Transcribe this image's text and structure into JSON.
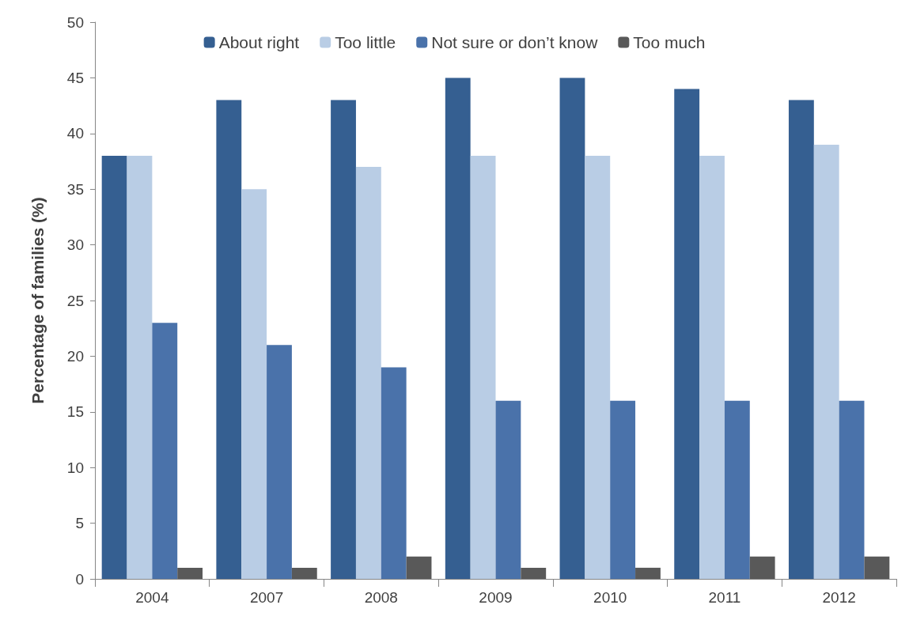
{
  "chart_data": {
    "type": "bar",
    "ylabel": "Percentage of families (%)",
    "categories": [
      "2004",
      "2007",
      "2008",
      "2009",
      "2010",
      "2011",
      "2012"
    ],
    "series": [
      {
        "name": "About right",
        "color": "#355f91",
        "values": [
          38,
          43,
          43,
          45,
          45,
          44,
          43
        ]
      },
      {
        "name": "Too little",
        "color": "#b9cde5",
        "values": [
          38,
          35,
          37,
          38,
          38,
          38,
          39
        ]
      },
      {
        "name": "Not sure or don’t know",
        "color": "#4a72aa",
        "values": [
          23,
          21,
          19,
          16,
          16,
          16,
          16
        ]
      },
      {
        "name": "Too much",
        "color": "#595959",
        "values": [
          1,
          1,
          2,
          1,
          1,
          2,
          2
        ]
      }
    ],
    "ylim": [
      0,
      50
    ],
    "yticks": [
      0,
      5,
      10,
      15,
      20,
      25,
      30,
      35,
      40,
      45,
      50
    ],
    "grid": false,
    "legend": "top"
  }
}
